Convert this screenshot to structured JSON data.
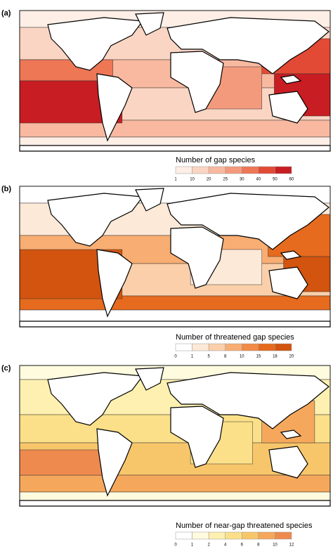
{
  "panels": [
    {
      "label": "(a)",
      "legend": {
        "title": "Number of gap species",
        "ticks": [
          1,
          10,
          20,
          25,
          30,
          40,
          50,
          60
        ],
        "colors": [
          "#fdeee6",
          "#fbd5c3",
          "#f8b9a0",
          "#f49a7c",
          "#ee7756",
          "#e34a35",
          "#c81d22"
        ]
      }
    },
    {
      "label": "(b)",
      "legend": {
        "title": "Number of threatened gap species",
        "ticks": [
          0,
          1,
          5,
          8,
          10,
          15,
          18,
          20
        ],
        "colors": [
          "#ffffff",
          "#fde9d7",
          "#fbcfa9",
          "#f8ad72",
          "#f28b45",
          "#e66b1e",
          "#d2540f"
        ]
      }
    },
    {
      "label": "(c)",
      "legend": {
        "title": "Number of near-gap threatened species",
        "ticks": [
          0,
          1,
          2,
          4,
          6,
          8,
          10,
          12
        ],
        "colors": [
          "#ffffff",
          "#fffbdf",
          "#fdf0b0",
          "#fbe089",
          "#f8c66a",
          "#f5a85b",
          "#ef8a4f"
        ]
      }
    }
  ]
}
